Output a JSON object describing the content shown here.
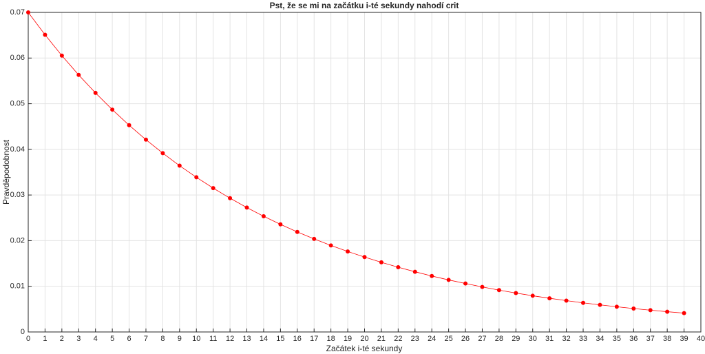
{
  "chart_data": {
    "type": "line",
    "title": "Pst, že se mi na začátku i-té sekundy nahodí crit",
    "xlabel": "Začátek i-té sekundy",
    "ylabel": "Pravděpodobnost",
    "x": [
      0,
      1,
      2,
      3,
      4,
      5,
      6,
      7,
      8,
      9,
      10,
      11,
      12,
      13,
      14,
      15,
      16,
      17,
      18,
      19,
      20,
      21,
      22,
      23,
      24,
      25,
      26,
      27,
      28,
      29,
      30,
      31,
      32,
      33,
      34,
      35,
      36,
      37,
      38,
      39
    ],
    "series": [
      {
        "color": "#ff0000",
        "values": [
          0.07,
          0.0651,
          0.06054,
          0.0563,
          0.05236,
          0.0487,
          0.04529,
          0.04212,
          0.03917,
          0.03643,
          0.03388,
          0.03151,
          0.0293,
          0.02725,
          0.02534,
          0.02357,
          0.02192,
          0.02038,
          0.01896,
          0.01763,
          0.0164,
          0.01525,
          0.01418,
          0.01319,
          0.01226,
          0.0114,
          0.01061,
          0.00986,
          0.00917,
          0.00853,
          0.00793,
          0.00738,
          0.00686,
          0.00638,
          0.00594,
          0.00552,
          0.00513,
          0.00477,
          0.00444,
          0.00413
        ]
      }
    ],
    "xlim": [
      0,
      40
    ],
    "xticks": [
      0,
      1,
      2,
      3,
      4,
      5,
      6,
      7,
      8,
      9,
      10,
      11,
      12,
      13,
      14,
      15,
      16,
      17,
      18,
      19,
      20,
      21,
      22,
      23,
      24,
      25,
      26,
      27,
      28,
      29,
      30,
      31,
      32,
      33,
      34,
      35,
      36,
      37,
      38,
      39,
      40
    ],
    "ylim": [
      0,
      0.07
    ],
    "yticks": [
      0,
      0.01,
      0.02,
      0.03,
      0.04,
      0.05,
      0.06,
      0.07
    ],
    "grid": true
  }
}
